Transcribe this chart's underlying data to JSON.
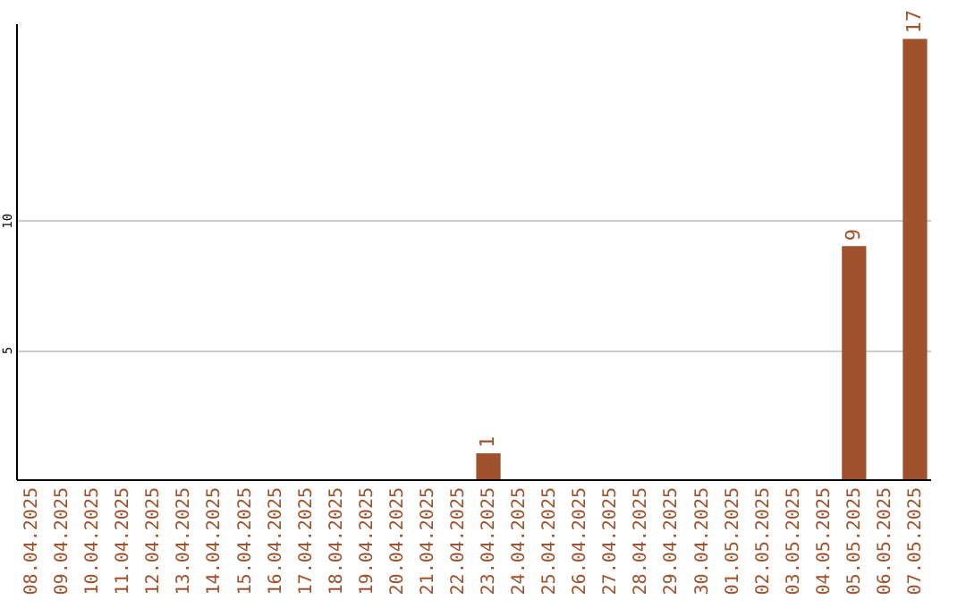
{
  "chart_data": {
    "type": "bar",
    "categories": [
      "08.04.2025",
      "09.04.2025",
      "10.04.2025",
      "11.04.2025",
      "12.04.2025",
      "13.04.2025",
      "14.04.2025",
      "15.04.2025",
      "16.04.2025",
      "17.04.2025",
      "18.04.2025",
      "19.04.2025",
      "20.04.2025",
      "21.04.2025",
      "22.04.2025",
      "23.04.2025",
      "24.04.2025",
      "25.04.2025",
      "26.04.2025",
      "27.04.2025",
      "28.04.2025",
      "29.04.2025",
      "30.04.2025",
      "01.05.2025",
      "02.05.2025",
      "03.05.2025",
      "04.05.2025",
      "05.05.2025",
      "06.05.2025",
      "07.05.2025"
    ],
    "values": [
      0,
      0,
      0,
      0,
      0,
      0,
      0,
      0,
      0,
      0,
      0,
      0,
      0,
      0,
      0,
      1,
      0,
      0,
      0,
      0,
      0,
      0,
      0,
      0,
      0,
      0,
      0,
      9,
      0,
      17
    ],
    "value_labels": [
      null,
      null,
      null,
      null,
      null,
      null,
      null,
      null,
      null,
      null,
      null,
      null,
      null,
      null,
      null,
      "1",
      null,
      null,
      null,
      null,
      null,
      null,
      null,
      null,
      null,
      null,
      null,
      "9",
      null,
      "17"
    ],
    "color": "#a0522d",
    "ylim": [
      0,
      17.6
    ],
    "yticks": [
      5,
      10
    ],
    "grid": "y"
  }
}
